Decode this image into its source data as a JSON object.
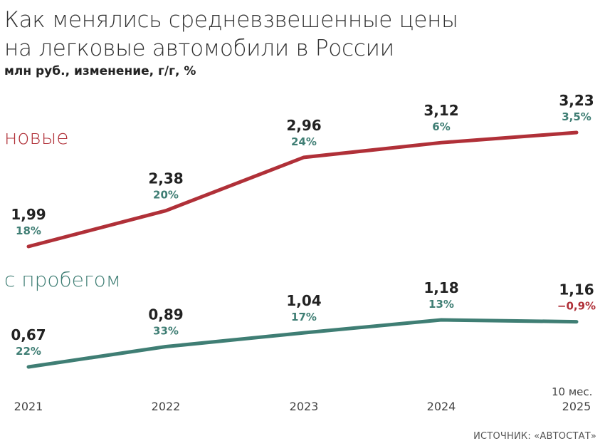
{
  "title_line1": "Как менялись средневзвешенные цены",
  "title_line2": "на легковые автомобили в России",
  "subtitle": "млн руб., изменение, г/г, %",
  "source": "ИСТОЧНИК: «АВТОСТАТ»",
  "x_note": "10 мес.",
  "colors": {
    "new": "#b03038",
    "used": "#3f7e74",
    "negative": "#b03038"
  },
  "chart_data": {
    "type": "line",
    "title": "Как менялись средневзвешенные цены на легковые автомобили в России",
    "subtitle": "млн руб., изменение, г/г, %",
    "categories": [
      "2021",
      "2022",
      "2023",
      "2024",
      "2025"
    ],
    "series": [
      {
        "name": "новые",
        "values": [
          1.99,
          2.38,
          2.96,
          3.12,
          3.23
        ],
        "labels": [
          "1,99",
          "2,38",
          "2,96",
          "3,12",
          "3,23"
        ],
        "changes": [
          "18%",
          "20%",
          "24%",
          "6%",
          "3,5%"
        ]
      },
      {
        "name": "с пробегом",
        "values": [
          0.67,
          0.89,
          1.04,
          1.18,
          1.16
        ],
        "labels": [
          "0,67",
          "0,89",
          "1,04",
          "1,18",
          "1,16"
        ],
        "changes": [
          "22%",
          "33%",
          "17%",
          "13%",
          "−0,9%"
        ]
      }
    ],
    "grid": false
  }
}
